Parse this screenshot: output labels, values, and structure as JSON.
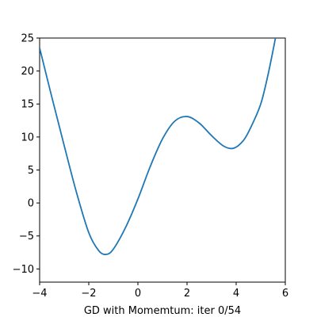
{
  "chart_data": {
    "type": "line",
    "xlabel": "GD with Momemtum: iter 0/54",
    "ylabel": "",
    "xlim": [
      -4,
      6
    ],
    "ylim": [
      -12,
      25
    ],
    "xticks": [
      -4,
      -2,
      0,
      2,
      4,
      6
    ],
    "xtick_labels": [
      "−4",
      "−2",
      "0",
      "2",
      "4",
      "6"
    ],
    "yticks": [
      -10,
      -5,
      0,
      5,
      10,
      15,
      20,
      25
    ],
    "ytick_labels": [
      "−10",
      "−5",
      "0",
      "5",
      "10",
      "15",
      "20",
      "25"
    ],
    "grid": false,
    "series": [
      {
        "color": "#1f77b4",
        "x": [
          -4.0,
          -3.5,
          -3.0,
          -2.5,
          -2.0,
          -1.6,
          -1.3,
          -1.0,
          -0.5,
          0.0,
          0.5,
          1.0,
          1.5,
          2.0,
          2.5,
          3.0,
          3.5,
          3.9,
          4.3,
          4.6,
          5.0,
          5.3,
          5.6
        ],
        "y": [
          23.5,
          16.0,
          8.7,
          1.6,
          -4.5,
          -7.2,
          -7.8,
          -7.0,
          -3.7,
          0.6,
          5.5,
          9.7,
          12.4,
          13.1,
          12.1,
          10.2,
          8.6,
          8.3,
          9.5,
          11.5,
          15.0,
          19.5,
          25.0
        ]
      }
    ]
  }
}
